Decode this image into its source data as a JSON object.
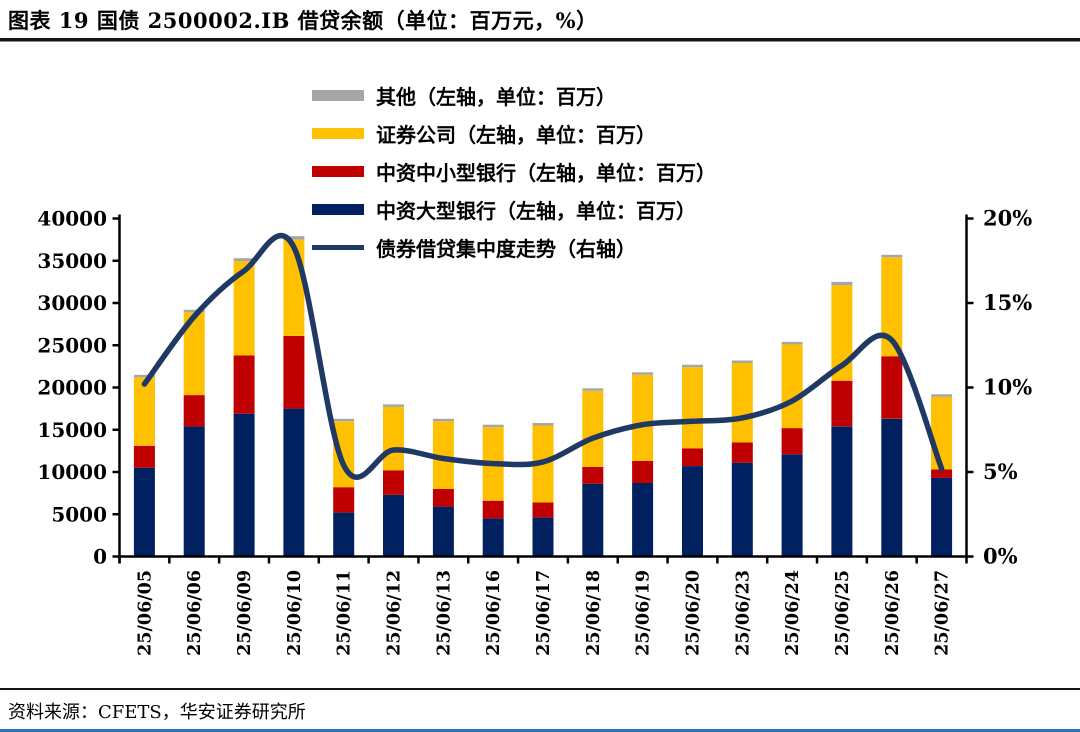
{
  "page": {
    "title": "图表 19 国债 2500002.IB 借贷余额（单位：百万元，%）",
    "source": "资料来源：CFETS，华安证券研究所"
  },
  "colors": {
    "other_gray": "#A6A6A6",
    "securities_yellow": "#FFC000",
    "small_bank_red": "#C00000",
    "large_bank_navy": "#002060",
    "trend_line_navy": "#1F3864",
    "axis_black": "#000000",
    "divider_dark": "#141414",
    "bottom_rule_blue": "#2E74B5"
  },
  "legend": [
    {
      "label": "其他（左轴，单位：百万）",
      "color": "#A6A6A6",
      "type": "box"
    },
    {
      "label": "证券公司（左轴，单位：百万）",
      "color": "#FFC000",
      "type": "box"
    },
    {
      "label": "中资中小型银行（左轴，单位：百万）",
      "color": "#C00000",
      "type": "box"
    },
    {
      "label": "中资大型银行（左轴，单位：百万）",
      "color": "#002060",
      "type": "box"
    },
    {
      "label": "债券借贷集中度走势（右轴）",
      "color": "#1F3864",
      "type": "line"
    }
  ],
  "chart_data": {
    "type": "bar",
    "subtype": "stacked-bar-with-line",
    "title": "国债 2500002.IB 借贷余额",
    "units": "百万元, %",
    "grid": false,
    "legend_position": "top-center",
    "categories": [
      "25/06/05",
      "25/06/06",
      "25/06/09",
      "25/06/10",
      "25/06/11",
      "25/06/12",
      "25/06/13",
      "25/06/16",
      "25/06/17",
      "25/06/18",
      "25/06/19",
      "25/06/20",
      "25/06/23",
      "25/06/24",
      "25/06/25",
      "25/06/26",
      "25/06/27"
    ],
    "series": [
      {
        "name": "中资大型银行（左轴，单位：百万）",
        "type": "bar",
        "axis": "left",
        "color": "#002060",
        "values": [
          10500,
          15400,
          16900,
          17500,
          5200,
          7300,
          5900,
          4500,
          4600,
          8600,
          8700,
          10700,
          11100,
          12100,
          15400,
          16300,
          9300
        ]
      },
      {
        "name": "中资中小型银行（左轴，单位：百万）",
        "type": "bar",
        "axis": "left",
        "color": "#C00000",
        "values": [
          2600,
          3700,
          6900,
          8600,
          3000,
          2900,
          2100,
          2100,
          1800,
          2000,
          2600,
          2100,
          2400,
          3100,
          5400,
          7400,
          1000
        ]
      },
      {
        "name": "证券公司（左轴，单位：百万）",
        "type": "bar",
        "axis": "left",
        "color": "#FFC000",
        "values": [
          8100,
          9800,
          11150,
          11400,
          7800,
          7500,
          8000,
          8700,
          9100,
          9000,
          10200,
          9600,
          9400,
          9900,
          11300,
          11700,
          8600
        ]
      },
      {
        "name": "其他（左轴，单位：百万）",
        "type": "bar",
        "axis": "left",
        "color": "#A6A6A6",
        "values": [
          300,
          300,
          350,
          400,
          300,
          300,
          300,
          300,
          300,
          300,
          300,
          300,
          300,
          300,
          400,
          300,
          300
        ]
      },
      {
        "name": "债券借贷集中度走势（右轴）",
        "type": "line",
        "axis": "right",
        "color": "#1F3864",
        "values": [
          10.2,
          14.2,
          16.9,
          18.3,
          5.4,
          6.3,
          5.8,
          5.5,
          5.6,
          7.0,
          7.8,
          8.0,
          8.2,
          9.2,
          11.3,
          12.8,
          5.2
        ]
      }
    ],
    "left_axis": {
      "min": 0,
      "max": 40000,
      "step": 5000,
      "ticks": [
        "40000",
        "35000",
        "30000",
        "25000",
        "20000",
        "15000",
        "10000",
        "5000",
        "0"
      ]
    },
    "right_axis": {
      "min": 0,
      "max": 20,
      "step": 5,
      "ticks": [
        "20%",
        "15%",
        "10%",
        "5%",
        "0%"
      ]
    }
  }
}
